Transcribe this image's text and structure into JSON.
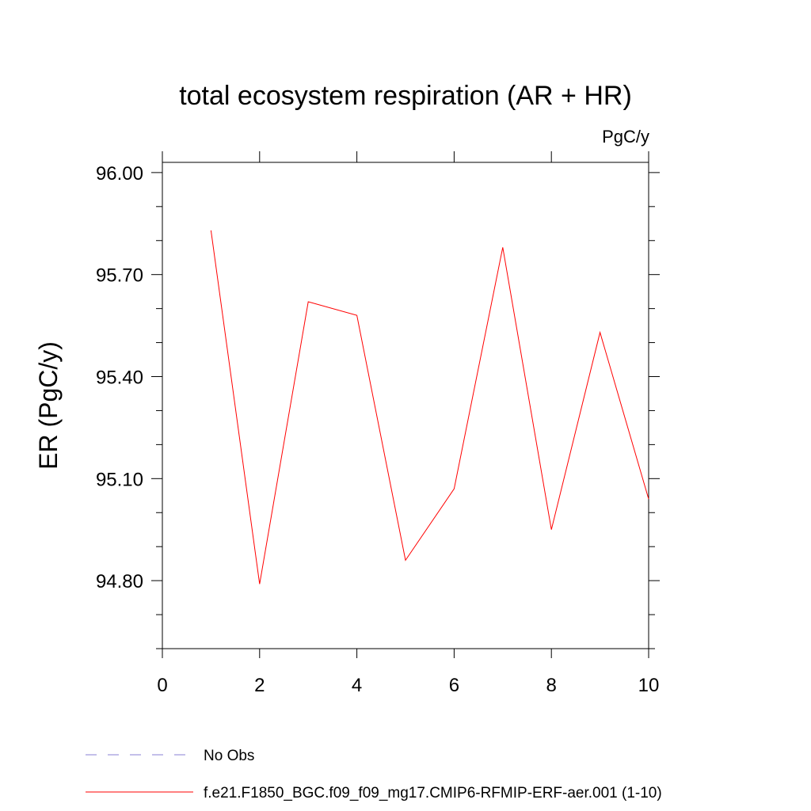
{
  "chart_data": {
    "type": "line",
    "title": "total ecosystem respiration (AR + HR)",
    "units": "PgC/y",
    "ylabel": "ER  (PgC/y)",
    "xlabel": "",
    "xlim": [
      0,
      10
    ],
    "ylim": [
      94.6,
      96.03
    ],
    "xticks": [
      0,
      2,
      4,
      6,
      8,
      10
    ],
    "xtick_labels": [
      "0",
      "2",
      "4",
      "6",
      "8",
      "10"
    ],
    "yticks": [
      94.8,
      95.1,
      95.4,
      95.7,
      96.0
    ],
    "ytick_labels": [
      "94.80",
      "95.10",
      "95.40",
      "95.70",
      "96.00"
    ],
    "series": [
      {
        "name": "f.e21.F1850_BGC.f09_f09_mg17.CMIP6-RFMIP-ERF-aer.001 (1-10)",
        "color": "#ff0000",
        "style": "solid",
        "x": [
          1,
          2,
          3,
          4,
          5,
          6,
          7,
          8,
          9,
          10
        ],
        "values": [
          95.83,
          94.79,
          95.62,
          95.58,
          94.86,
          95.07,
          95.78,
          94.95,
          95.53,
          95.04
        ]
      }
    ],
    "legend": [
      {
        "label": "No Obs",
        "color": "#8a7fd6",
        "style": "dashed"
      },
      {
        "label": "f.e21.F1850_BGC.f09_f09_mg17.CMIP6-RFMIP-ERF-aer.001 (1-10)",
        "color": "#ff0000",
        "style": "solid"
      }
    ],
    "legend_position": "bottom-left",
    "grid": false
  }
}
